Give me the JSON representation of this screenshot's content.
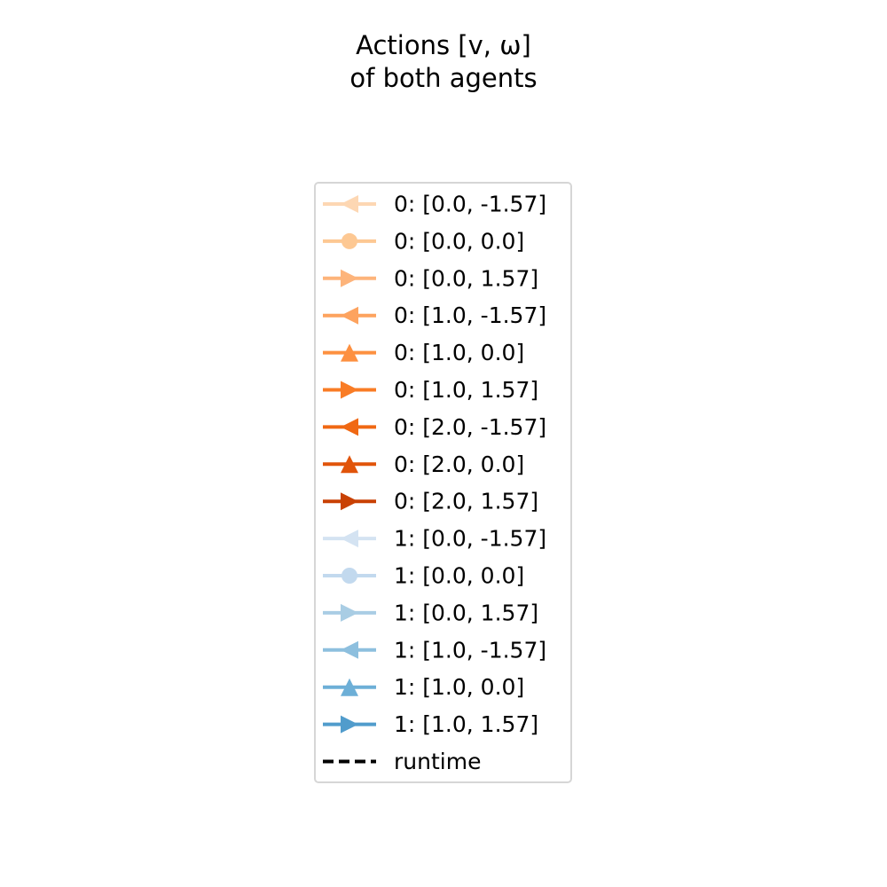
{
  "chart_data": {
    "type": "line",
    "title": "Actions [v, ω]\nof both agents",
    "title_lines": [
      "Actions [v, ω]",
      "of both agents"
    ],
    "grid": false,
    "legend_placement": "center",
    "series": [
      {
        "name": "0: [0.0, -1.57]",
        "agent": "0",
        "action": [
          0.0,
          -1.57
        ],
        "marker": "triangle-left",
        "color": "#fdd7b3"
      },
      {
        "name": "0: [0.0, 0.0]",
        "agent": "0",
        "action": [
          0.0,
          0.0
        ],
        "marker": "circle",
        "color": "#fdc893"
      },
      {
        "name": "0: [0.0, 1.57]",
        "agent": "0",
        "action": [
          0.0,
          1.57
        ],
        "marker": "triangle-right",
        "color": "#fdb47b"
      },
      {
        "name": "0: [1.0, -1.57]",
        "agent": "0",
        "action": [
          1.0,
          -1.57
        ],
        "marker": "triangle-left",
        "color": "#fda35f"
      },
      {
        "name": "0: [1.0, 0.0]",
        "agent": "0",
        "action": [
          1.0,
          0.0
        ],
        "marker": "triangle-up",
        "color": "#fd9040"
      },
      {
        "name": "0: [1.0, 1.57]",
        "agent": "0",
        "action": [
          1.0,
          1.57
        ],
        "marker": "triangle-right",
        "color": "#f97c25"
      },
      {
        "name": "0: [2.0, -1.57]",
        "agent": "0",
        "action": [
          2.0,
          -1.57
        ],
        "marker": "triangle-left",
        "color": "#f06813"
      },
      {
        "name": "0: [2.0, 0.0]",
        "agent": "0",
        "action": [
          2.0,
          0.0
        ],
        "marker": "triangle-up",
        "color": "#e1540a"
      },
      {
        "name": "0: [2.0, 1.57]",
        "agent": "0",
        "action": [
          2.0,
          1.57
        ],
        "marker": "triangle-right",
        "color": "#c94104"
      },
      {
        "name": "1: [0.0, -1.57]",
        "agent": "1",
        "action": [
          0.0,
          -1.57
        ],
        "marker": "triangle-left",
        "color": "#d4e3f2"
      },
      {
        "name": "1: [0.0, 0.0]",
        "agent": "1",
        "action": [
          0.0,
          0.0
        ],
        "marker": "circle",
        "color": "#c2d9ee"
      },
      {
        "name": "1: [0.0, 1.57]",
        "agent": "1",
        "action": [
          0.0,
          1.57
        ],
        "marker": "triangle-right",
        "color": "#a9cde4"
      },
      {
        "name": "1: [1.0, -1.57]",
        "agent": "1",
        "action": [
          1.0,
          -1.57
        ],
        "marker": "triangle-left",
        "color": "#8dbfde"
      },
      {
        "name": "1: [1.0, 0.0]",
        "agent": "1",
        "action": [
          1.0,
          0.0
        ],
        "marker": "triangle-up",
        "color": "#6dafd7"
      },
      {
        "name": "1: [1.0, 1.57]",
        "agent": "1",
        "action": [
          1.0,
          1.57
        ],
        "marker": "triangle-right",
        "color": "#519ccc"
      },
      {
        "name": "runtime",
        "marker": "none",
        "line_style": "dashed",
        "color": "#000000"
      }
    ]
  }
}
